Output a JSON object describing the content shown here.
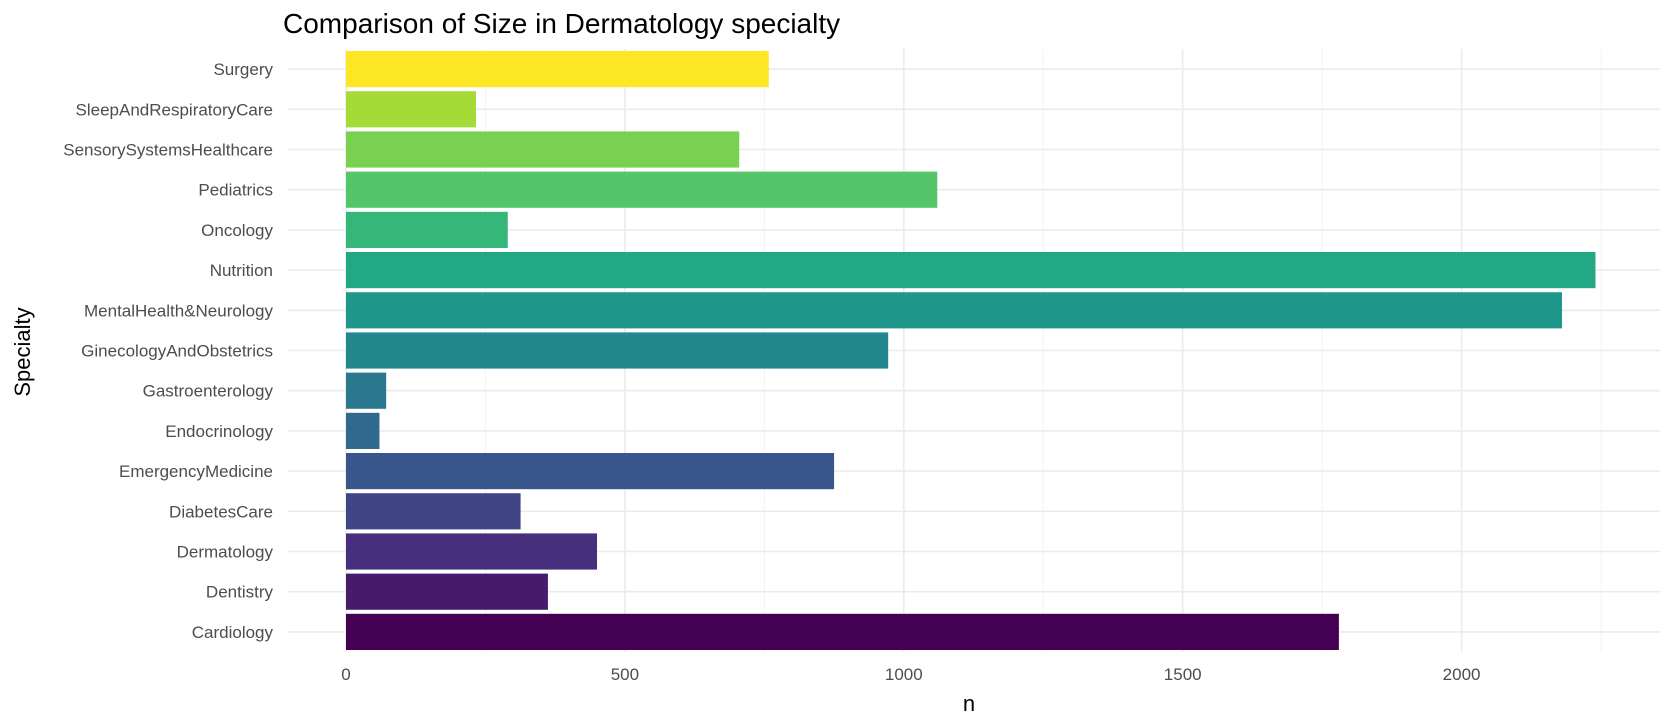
{
  "chart_data": {
    "type": "bar",
    "orientation": "horizontal",
    "title": "Comparison of Size in Dermatology specialty",
    "xlabel": "n",
    "ylabel": "Specialty",
    "xlim": [
      0,
      2250
    ],
    "xticks": [
      0,
      500,
      1000,
      1500,
      2000
    ],
    "grid": true,
    "legend": "none",
    "categories": [
      "Cardiology",
      "Dentistry",
      "Dermatology",
      "DiabetesCare",
      "EmergencyMedicine",
      "Endocrinology",
      "Gastroenterology",
      "GinecologyAndObstetrics",
      "MentalHealth&Neurology",
      "Nutrition",
      "Oncology",
      "Pediatrics",
      "SensorySystemsHealthcare",
      "SleepAndRespiratoryCare",
      "Surgery"
    ],
    "values": [
      1780,
      362,
      450,
      313,
      875,
      60,
      72,
      972,
      2180,
      2240,
      290,
      1060,
      705,
      233,
      758
    ],
    "colors": [
      "#440154",
      "#481A6C",
      "#472F7D",
      "#414487",
      "#39568C",
      "#31688E",
      "#2A788E",
      "#23888E",
      "#1F988B",
      "#22A884",
      "#35B779",
      "#54C568",
      "#7AD151",
      "#A5DB36",
      "#FDE725"
    ]
  }
}
